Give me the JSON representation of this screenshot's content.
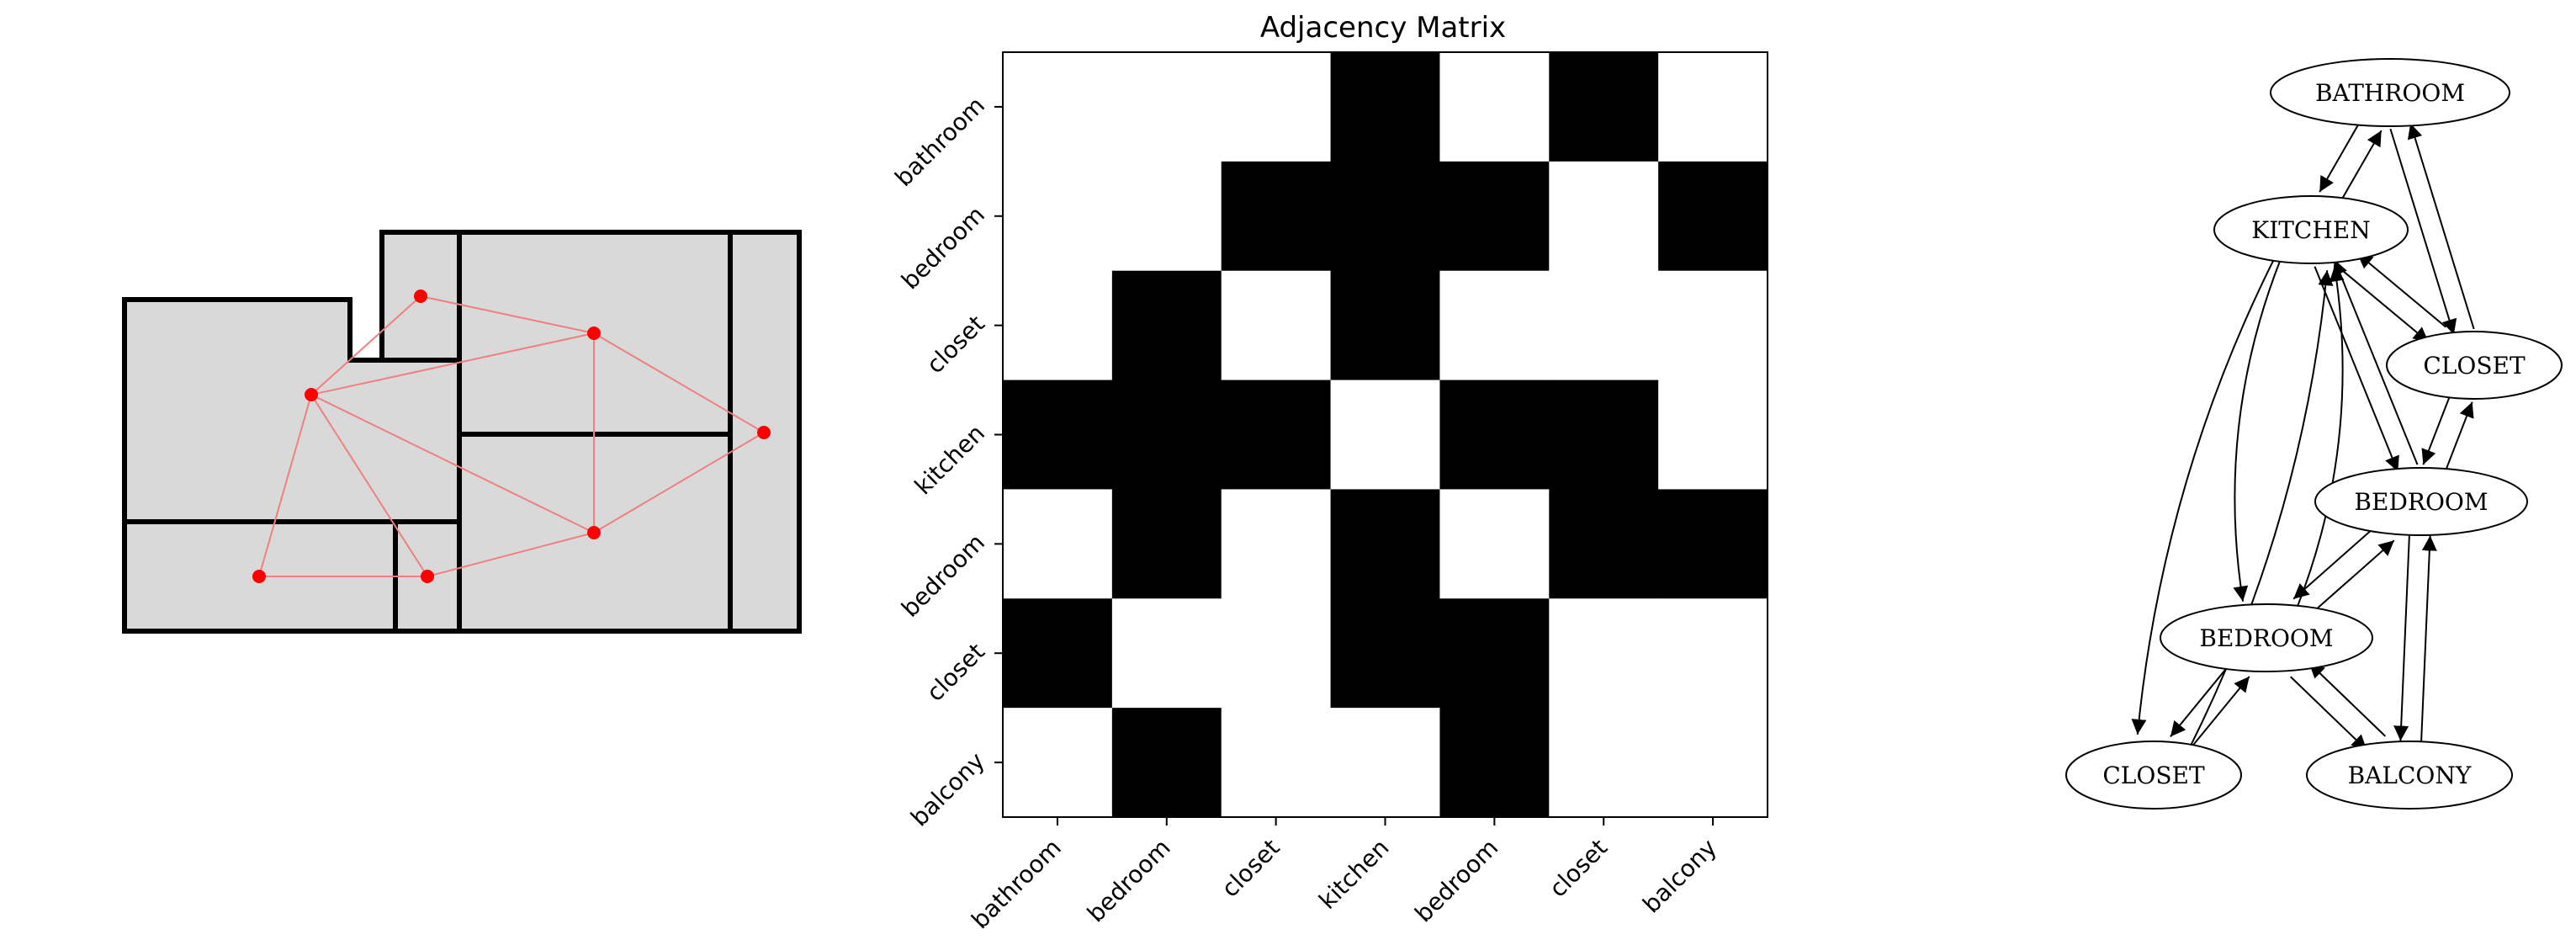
{
  "matrix_panel": {
    "title": "Adjacency Matrix",
    "row_labels": [
      "bathroom",
      "bedroom",
      "closet",
      "kitchen",
      "bedroom",
      "closet",
      "balcony"
    ],
    "col_labels": [
      "bathroom",
      "bedroom",
      "closet",
      "kitchen",
      "bedroom",
      "closet",
      "balcony"
    ],
    "matrix": [
      [
        0,
        0,
        0,
        1,
        0,
        1,
        0
      ],
      [
        0,
        0,
        1,
        1,
        1,
        0,
        1
      ],
      [
        0,
        1,
        0,
        1,
        0,
        0,
        0
      ],
      [
        1,
        1,
        1,
        0,
        1,
        1,
        0
      ],
      [
        0,
        1,
        0,
        1,
        0,
        1,
        1
      ],
      [
        1,
        0,
        0,
        1,
        1,
        0,
        0
      ],
      [
        0,
        1,
        0,
        0,
        1,
        0,
        0
      ]
    ],
    "colors": {
      "connected": "#000000",
      "empty": "#ffffff"
    }
  },
  "graph_panel": {
    "nodes": [
      {
        "id": "bathroom",
        "label": "BATHROOM"
      },
      {
        "id": "kitchen",
        "label": "KITCHEN"
      },
      {
        "id": "closet_a",
        "label": "CLOSET"
      },
      {
        "id": "bedroom_a",
        "label": "BEDROOM"
      },
      {
        "id": "bedroom_b",
        "label": "BEDROOM"
      },
      {
        "id": "closet_b",
        "label": "CLOSET"
      },
      {
        "id": "balcony",
        "label": "BALCONY"
      }
    ],
    "edges": [
      [
        "bathroom",
        "kitchen"
      ],
      [
        "bathroom",
        "closet_a"
      ],
      [
        "kitchen",
        "closet_a"
      ],
      [
        "kitchen",
        "bedroom_a"
      ],
      [
        "kitchen",
        "bedroom_b"
      ],
      [
        "kitchen",
        "closet_b"
      ],
      [
        "closet_a",
        "bedroom_a"
      ],
      [
        "bedroom_a",
        "bedroom_b"
      ],
      [
        "bedroom_a",
        "balcony"
      ],
      [
        "bedroom_b",
        "closet_b"
      ],
      [
        "bedroom_b",
        "balcony"
      ]
    ]
  },
  "floorplan_panel": {
    "colors": {
      "room_fill": "#d9d9d9",
      "wall": "#000000",
      "node": "#ff0000",
      "link": "#f08080"
    }
  }
}
